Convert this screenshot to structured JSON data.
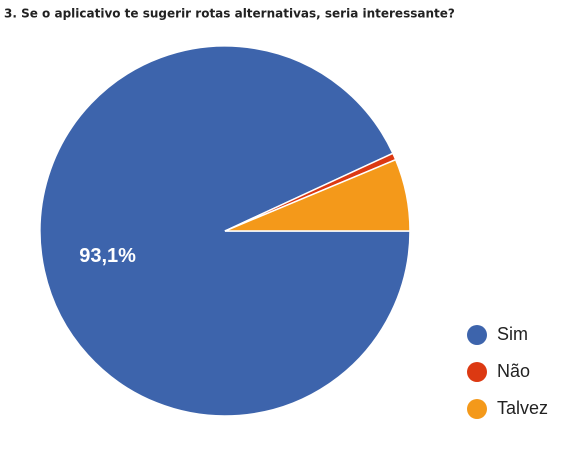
{
  "chart_data": {
    "type": "pie",
    "title": "3. Se o aplicativo te sugerir rotas alternativas, seria interessante?",
    "categories": [
      "Sim",
      "Não",
      "Talvez"
    ],
    "values": [
      93.1,
      0.6,
      6.3
    ],
    "value_labels": [
      "93,1%",
      null,
      null
    ],
    "colors": [
      "#3d64ac",
      "#dc3912",
      "#f4991a"
    ],
    "legend": "right"
  }
}
